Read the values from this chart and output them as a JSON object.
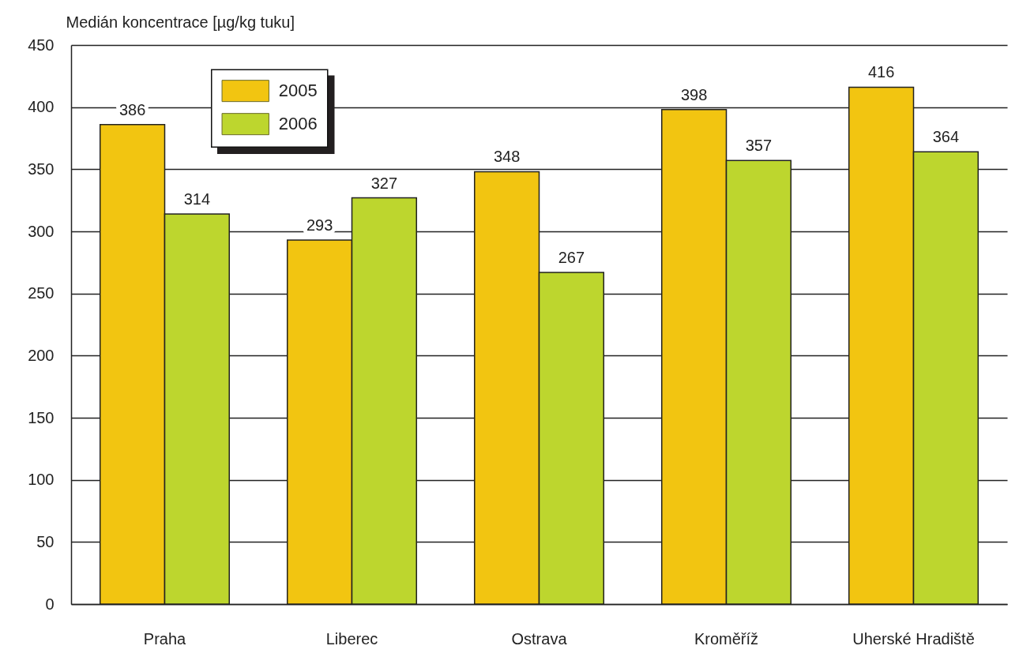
{
  "chart_data": {
    "type": "bar",
    "ylabel": "Medián koncentrace [µg/kg tuku]",
    "categories": [
      "Praha",
      "Liberec",
      "Ostrava",
      "Kroměříž",
      "Uherské Hradiště"
    ],
    "series": [
      {
        "name": "2005",
        "color": "#f2c511",
        "values": [
          386,
          293,
          348,
          398,
          416
        ]
      },
      {
        "name": "2006",
        "color": "#bdd62e",
        "values": [
          314,
          327,
          267,
          357,
          364
        ]
      }
    ],
    "ylim": [
      0,
      450
    ],
    "yticks": [
      0,
      50,
      100,
      150,
      200,
      250,
      300,
      350,
      400,
      450
    ],
    "grid": "y",
    "legend": "top left",
    "data_labels": true
  }
}
